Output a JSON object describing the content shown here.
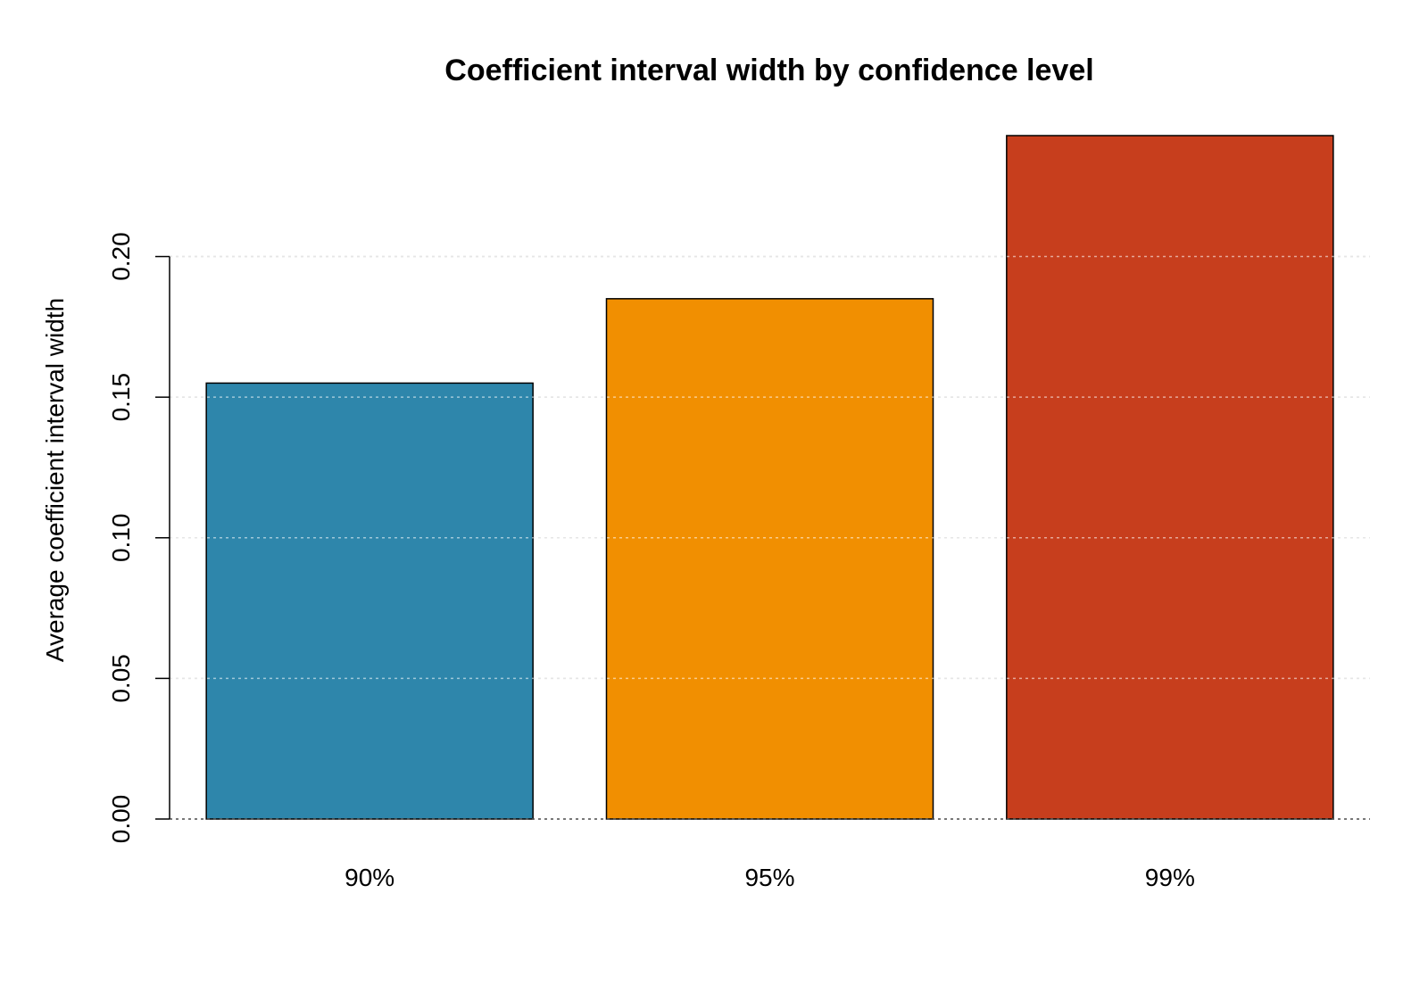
{
  "chart_data": {
    "type": "bar",
    "title": "Coefficient interval width by confidence level",
    "xlabel": "",
    "ylabel": "Average coefficient interval width",
    "categories": [
      "90%",
      "95%",
      "99%"
    ],
    "values": [
      0.155,
      0.185,
      0.243
    ],
    "colors": [
      "#2E86AB",
      "#F18F01",
      "#C73E1D"
    ],
    "ylim": [
      0,
      0.243
    ],
    "y_ticks": [
      0.0,
      0.05,
      0.1,
      0.15,
      0.2
    ],
    "y_tick_labels": [
      "0.00",
      "0.05",
      "0.10",
      "0.15",
      "0.20"
    ],
    "grid": "horizontal dotted",
    "legend": "none"
  }
}
